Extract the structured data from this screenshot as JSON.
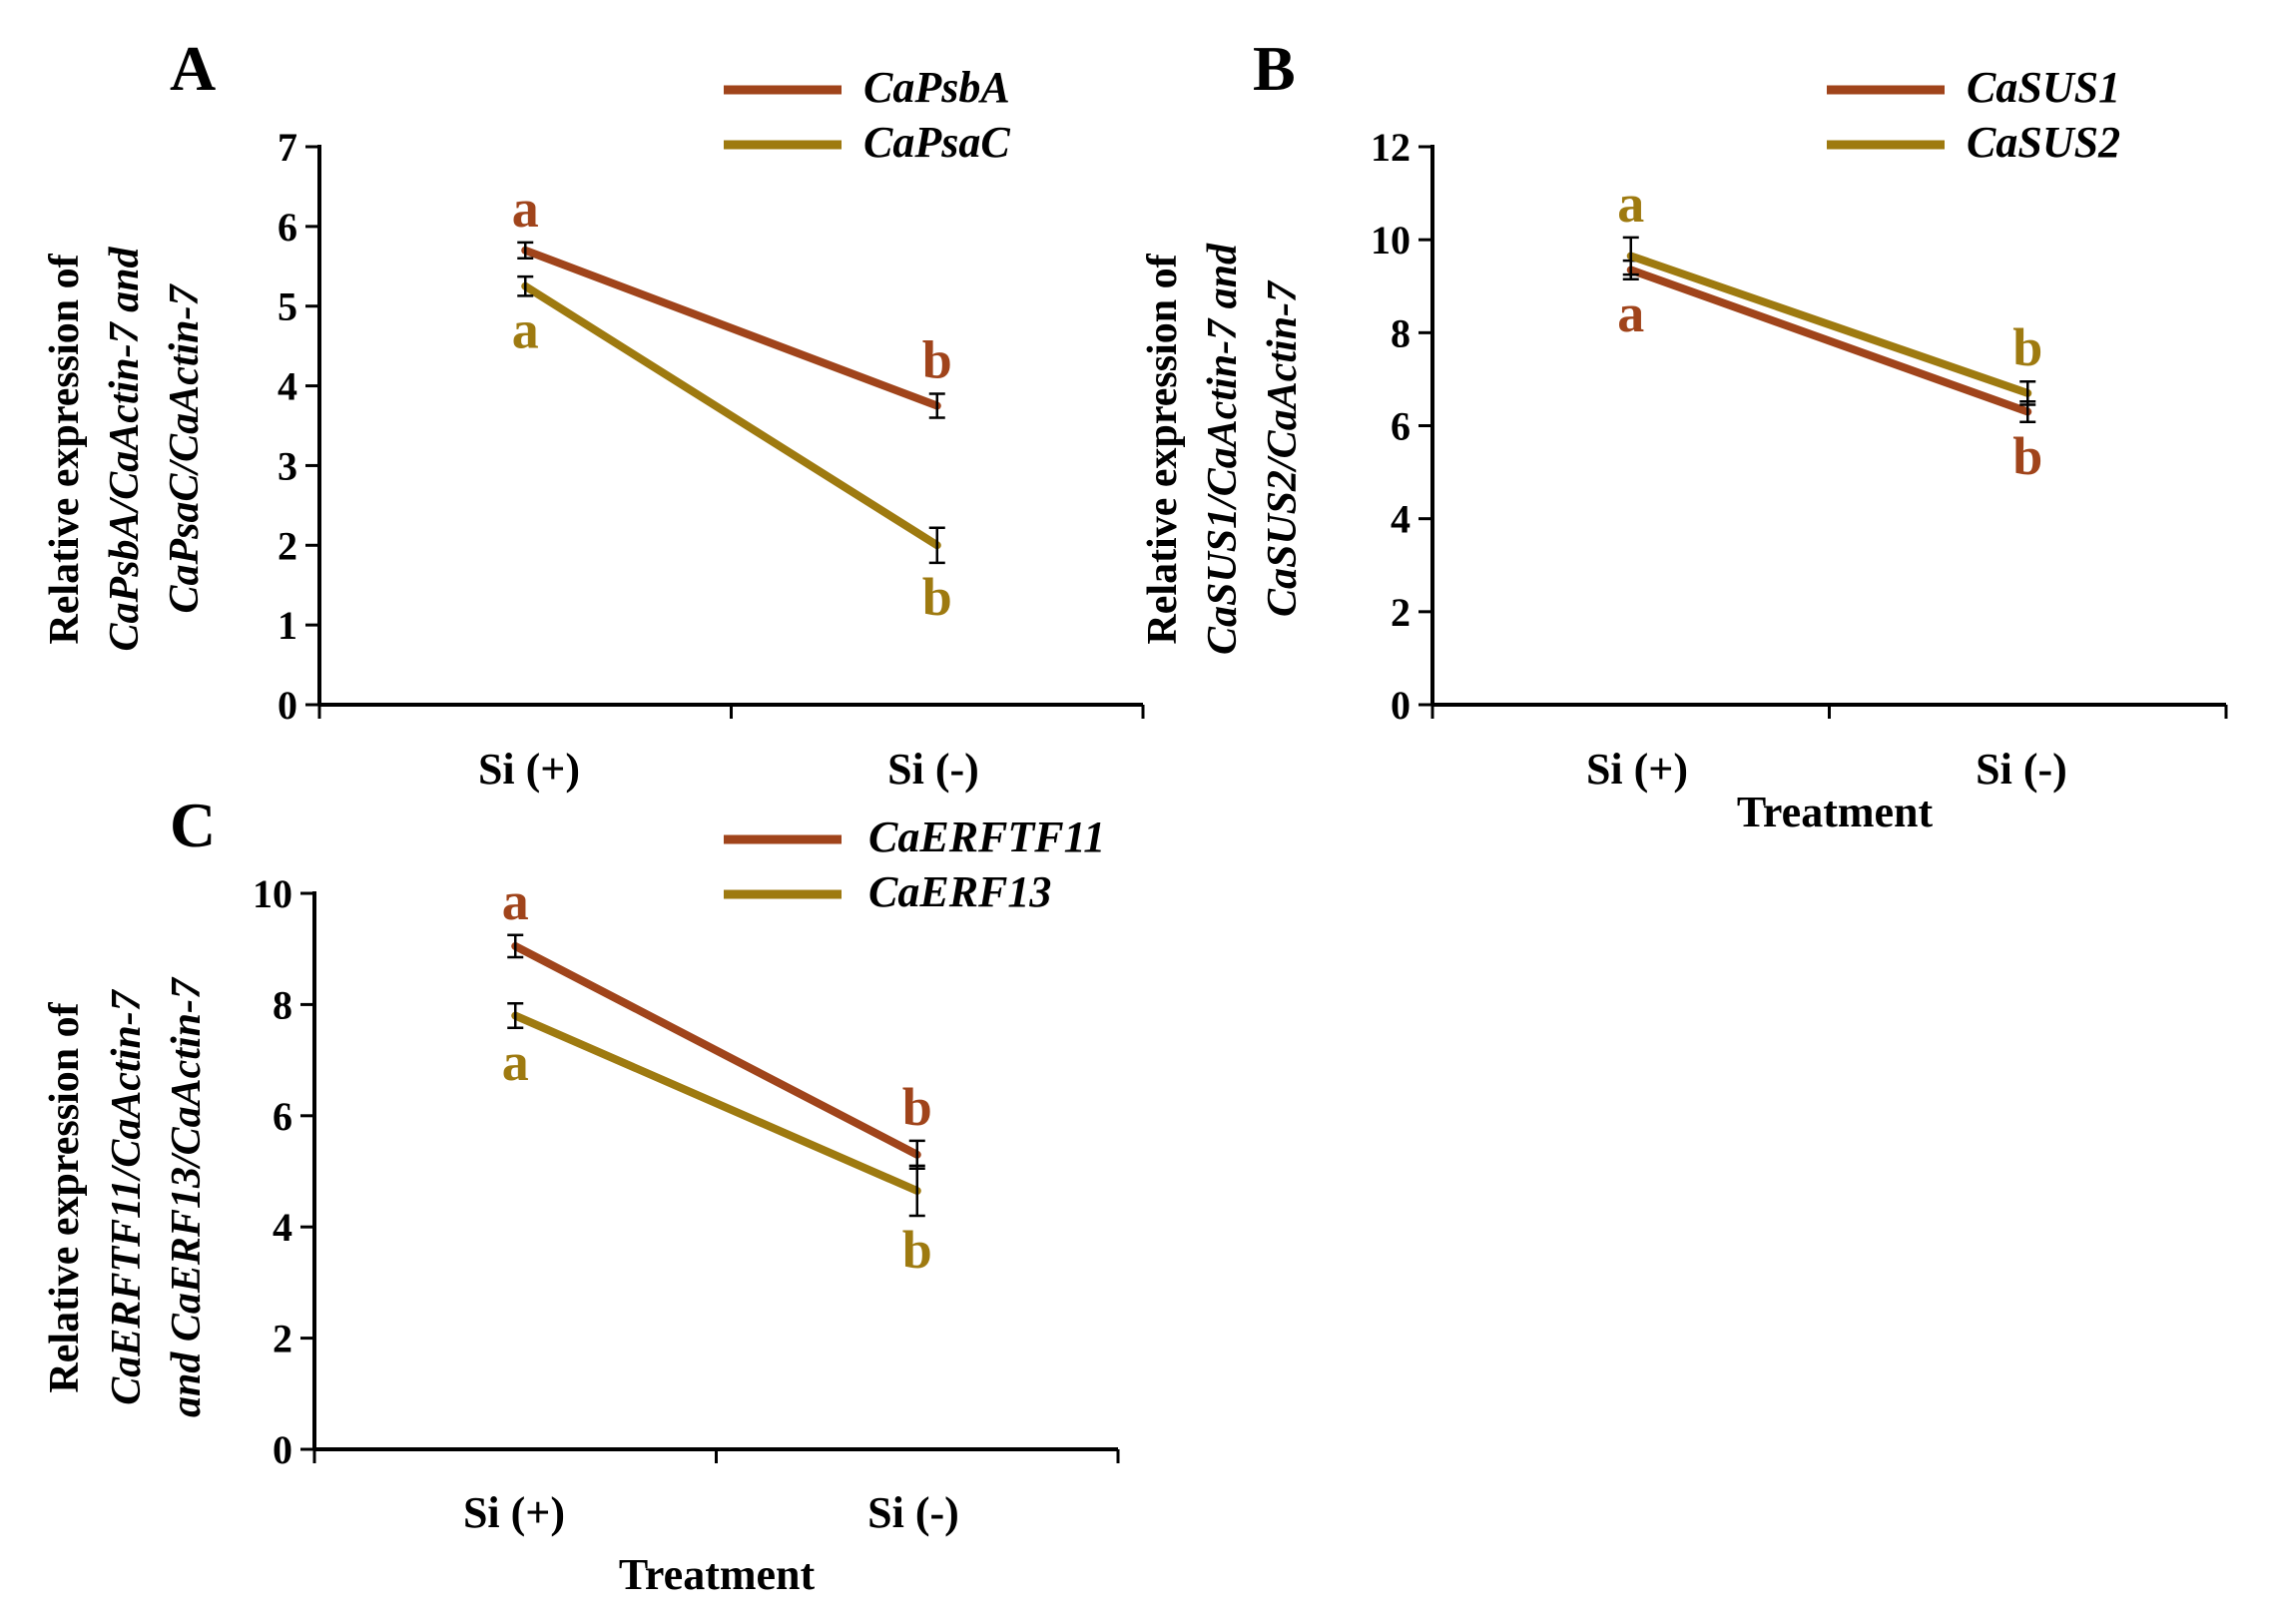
{
  "colors": {
    "series1": "#A0441B",
    "series2": "#9E7A10",
    "axis": "#000000"
  },
  "chart_data": [
    {
      "panel": "A",
      "type": "line",
      "categories": [
        "Si (+)",
        "Si (-)"
      ],
      "ylim": [
        0,
        7
      ],
      "yticks": [
        0,
        1,
        2,
        3,
        4,
        5,
        6,
        7
      ],
      "xlabel": "",
      "ylabel": {
        "line1": "Relative expression of",
        "line2_parts": [
          {
            "t": "CaPsbA/CaActin-7 and",
            "i": true
          }
        ],
        "line3_parts": [
          {
            "t": "CaPsaC/CaActin-7",
            "i": true
          }
        ]
      },
      "series": [
        {
          "name": "CaPsbA",
          "values": [
            5.7,
            3.75
          ],
          "errors": [
            0.1,
            0.15
          ],
          "labels": [
            "a",
            "b"
          ],
          "label_pos": [
            "above",
            "above"
          ]
        },
        {
          "name": "CaPsaC",
          "values": [
            5.25,
            2.0
          ],
          "errors": [
            0.12,
            0.22
          ],
          "labels": [
            "a",
            "b"
          ],
          "label_pos": [
            "below",
            "below"
          ]
        }
      ]
    },
    {
      "panel": "B",
      "type": "line",
      "categories": [
        "Si (+)",
        "Si (-)"
      ],
      "ylim": [
        0,
        12
      ],
      "yticks": [
        0,
        2,
        4,
        6,
        8,
        10,
        12
      ],
      "xlabel": "Treatment",
      "ylabel": {
        "line1": "Relative expression of",
        "line2_parts": [
          {
            "t": "CaSUS1/CaActin-7 and",
            "i": true
          }
        ],
        "line3_parts": [
          {
            "t": "CaSUS2/CaActin-7",
            "i": true
          }
        ]
      },
      "series": [
        {
          "name": "CaSUS1",
          "values": [
            9.35,
            6.3
          ],
          "errors": [
            0.2,
            0.22
          ],
          "labels": [
            "a",
            "b"
          ],
          "label_pos": [
            "below",
            "below"
          ]
        },
        {
          "name": "CaSUS2",
          "values": [
            9.65,
            6.7
          ],
          "errors": [
            0.4,
            0.25
          ],
          "labels": [
            "a",
            "b"
          ],
          "label_pos": [
            "above",
            "above"
          ]
        }
      ]
    },
    {
      "panel": "C",
      "type": "line",
      "categories": [
        "Si (+)",
        "Si (-)"
      ],
      "ylim": [
        0,
        10
      ],
      "yticks": [
        0,
        2,
        4,
        6,
        8,
        10
      ],
      "xlabel": "Treatment",
      "ylabel": {
        "line1": "Relative expression of",
        "line2_parts": [
          {
            "t": "CaERFTF11/CaActin-7",
            "i": true
          }
        ],
        "line3_parts": [
          {
            "t": "and",
            "i": true
          },
          {
            "t": " CaERF13/CaActin-7",
            "i": true
          }
        ]
      },
      "series": [
        {
          "name": "CaERFTF11",
          "values": [
            9.05,
            5.3
          ],
          "errors": [
            0.2,
            0.25
          ],
          "labels": [
            "a",
            "b"
          ],
          "label_pos": [
            "above",
            "above"
          ]
        },
        {
          "name": "CaERF13",
          "values": [
            7.8,
            4.65
          ],
          "errors": [
            0.22,
            0.45
          ],
          "labels": [
            "a",
            "b"
          ],
          "label_pos": [
            "below",
            "below"
          ]
        }
      ]
    }
  ]
}
